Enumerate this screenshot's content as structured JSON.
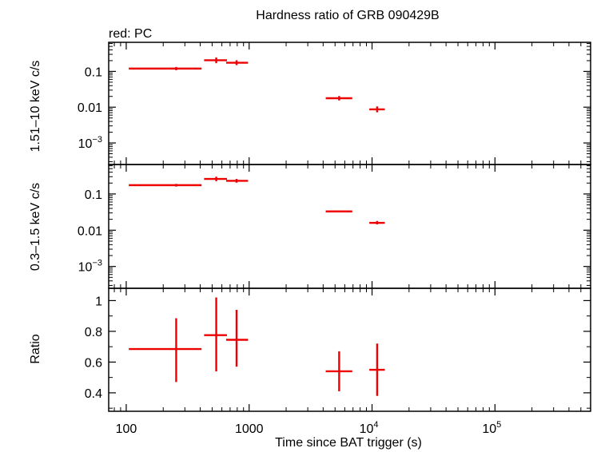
{
  "chart_data": {
    "type": "scatter",
    "title": "Hardness ratio of GRB 090429B",
    "subtitle": "red: PC",
    "xlabel": "Time since BAT trigger (s)",
    "xscale": "log",
    "xlim": [
      72,
      600000
    ],
    "x_ticks": [
      {
        "value": 100,
        "label": "100",
        "sup": ""
      },
      {
        "value": 1000,
        "label": "1000",
        "sup": ""
      },
      {
        "value": 10000,
        "label": "10",
        "sup": "4"
      },
      {
        "value": 100000,
        "label": "10",
        "sup": "5"
      }
    ],
    "color": "#ee0000",
    "panels": [
      {
        "id": "hard",
        "ylabel": "1.51–10 keV c/s",
        "yscale": "log",
        "ylim": [
          0.00025,
          0.65
        ],
        "y_ticks": [
          {
            "value": 0.1,
            "label": "0.1",
            "sup": ""
          },
          {
            "value": 0.01,
            "label": "0.01",
            "sup": ""
          },
          {
            "value": 0.001,
            "label": "10",
            "sup": "−3"
          }
        ],
        "points": [
          {
            "x": 255,
            "xlo": 105,
            "xhi": 410,
            "y": 0.12,
            "ylo": 0.108,
            "yhi": 0.133
          },
          {
            "x": 540,
            "xlo": 430,
            "xhi": 660,
            "y": 0.205,
            "ylo": 0.17,
            "yhi": 0.245
          },
          {
            "x": 790,
            "xlo": 650,
            "xhi": 980,
            "y": 0.175,
            "ylo": 0.15,
            "yhi": 0.205
          },
          {
            "x": 5400,
            "xlo": 4200,
            "xhi": 6900,
            "y": 0.0178,
            "ylo": 0.0154,
            "yhi": 0.0205
          },
          {
            "x": 11000,
            "xlo": 9500,
            "xhi": 12700,
            "y": 0.0087,
            "ylo": 0.0072,
            "yhi": 0.0105
          }
        ]
      },
      {
        "id": "soft",
        "ylabel": "0.3–1.5 keV c/s",
        "yscale": "log",
        "ylim": [
          0.00025,
          0.65
        ],
        "y_ticks": [
          {
            "value": 0.1,
            "label": "0.1",
            "sup": ""
          },
          {
            "value": 0.01,
            "label": "0.01",
            "sup": ""
          },
          {
            "value": 0.001,
            "label": "10",
            "sup": "−3"
          }
        ],
        "points": [
          {
            "x": 255,
            "xlo": 105,
            "xhi": 410,
            "y": 0.175,
            "ylo": 0.16,
            "yhi": 0.19
          },
          {
            "x": 540,
            "xlo": 430,
            "xhi": 660,
            "y": 0.26,
            "ylo": 0.225,
            "yhi": 0.3
          },
          {
            "x": 790,
            "xlo": 650,
            "xhi": 980,
            "y": 0.23,
            "ylo": 0.205,
            "yhi": 0.26
          },
          {
            "x": 5400,
            "xlo": 4200,
            "xhi": 6900,
            "y": 0.033,
            "ylo": 0.031,
            "yhi": 0.035
          },
          {
            "x": 11000,
            "xlo": 9500,
            "xhi": 12700,
            "y": 0.016,
            "ylo": 0.0145,
            "yhi": 0.018
          }
        ]
      },
      {
        "id": "ratio",
        "ylabel": "Ratio",
        "yscale": "linear",
        "ylim": [
          0.28,
          1.08
        ],
        "y_ticks": [
          {
            "value": 1,
            "label": "1",
            "sup": ""
          },
          {
            "value": 0.8,
            "label": "0.8",
            "sup": ""
          },
          {
            "value": 0.6,
            "label": "0.6",
            "sup": ""
          },
          {
            "value": 0.4,
            "label": "0.4",
            "sup": ""
          }
        ],
        "points": [
          {
            "x": 255,
            "xlo": 105,
            "xhi": 410,
            "y": 0.685,
            "ylo": 0.47,
            "yhi": 0.885
          },
          {
            "x": 540,
            "xlo": 430,
            "xhi": 660,
            "y": 0.775,
            "ylo": 0.54,
            "yhi": 1.02
          },
          {
            "x": 790,
            "xlo": 650,
            "xhi": 980,
            "y": 0.745,
            "ylo": 0.57,
            "yhi": 0.94
          },
          {
            "x": 5400,
            "xlo": 4200,
            "xhi": 6900,
            "y": 0.54,
            "ylo": 0.41,
            "yhi": 0.67
          },
          {
            "x": 11000,
            "xlo": 9500,
            "xhi": 12700,
            "y": 0.55,
            "ylo": 0.38,
            "yhi": 0.72
          }
        ]
      }
    ],
    "left_labels": [
      "1.51–10 keV c/s",
      "0.3–1.5 keV c/s",
      "Ratio"
    ]
  }
}
